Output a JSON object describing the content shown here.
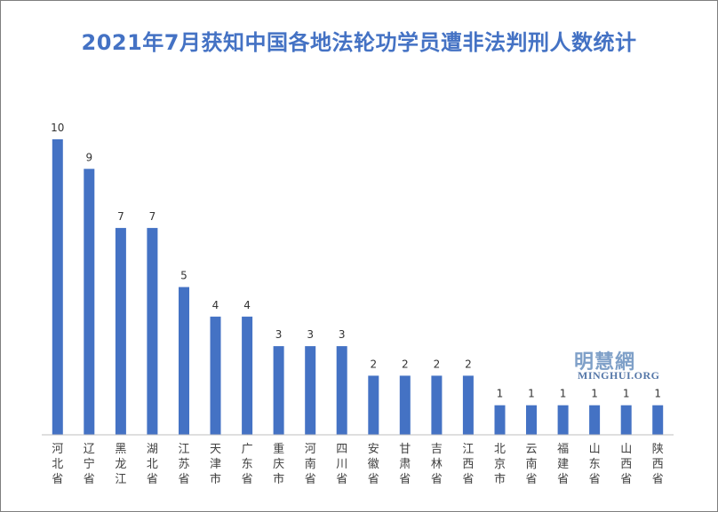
{
  "chart_data": {
    "type": "bar",
    "title": "2021年7月获知中国各地法轮功学员遭非法判刑人数统计",
    "categories": [
      "河北省",
      "辽宁省",
      "黑龙江",
      "湖北省",
      "江苏省",
      "天津市",
      "广东省",
      "重庆市",
      "河南省",
      "四川省",
      "安徽省",
      "甘肃省",
      "吉林省",
      "江西省",
      "北京市",
      "云南省",
      "福建省",
      "山东省",
      "山西省",
      "陕西省"
    ],
    "values": [
      10,
      9,
      7,
      7,
      5,
      4,
      4,
      3,
      3,
      3,
      2,
      2,
      2,
      2,
      1,
      1,
      1,
      1,
      1,
      1
    ],
    "ylim": [
      0,
      10
    ],
    "grid": false,
    "data_labels": true,
    "bar_color": "#4472c4"
  },
  "watermark": {
    "cn": "明慧網",
    "en": "MINGHUI.ORG"
  }
}
